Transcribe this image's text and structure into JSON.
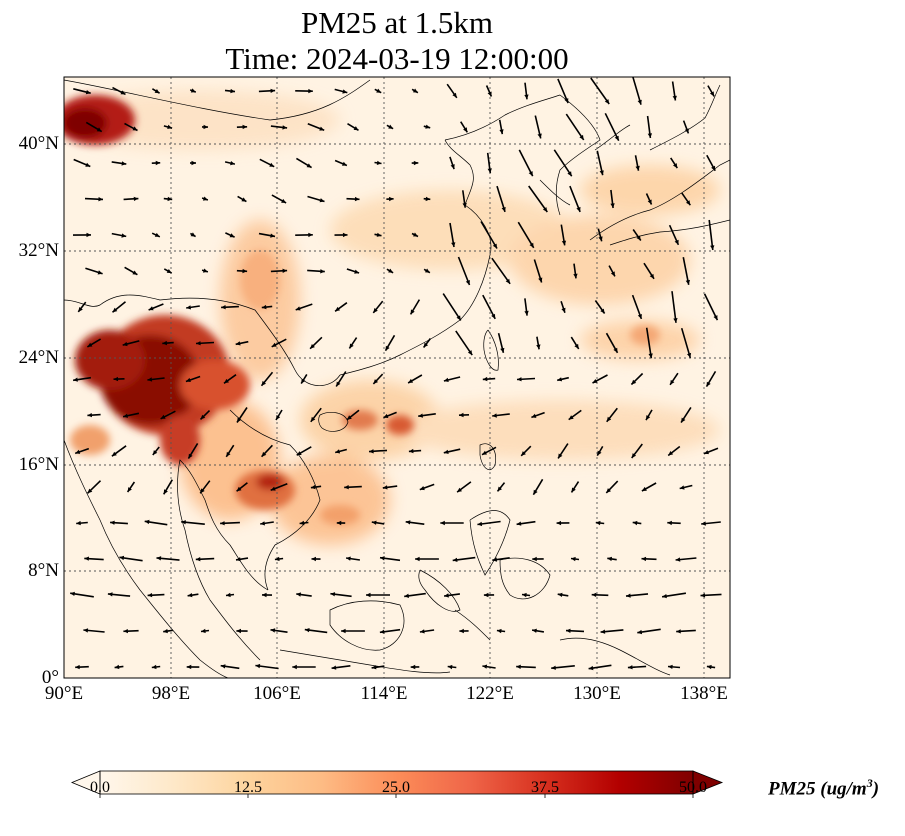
{
  "map": {
    "title_line1": "PM25 at 1.5km",
    "title_line2": "Time: 2024-03-19 12:00:00",
    "lat_labels": [
      "40°N",
      "32°N",
      "24°N",
      "16°N",
      "8°N",
      "0°"
    ],
    "lon_labels": [
      "90°E",
      "98°E",
      "106°E",
      "114°E",
      "122°E",
      "130°E",
      "138°E"
    ],
    "lon_range": [
      90,
      140
    ],
    "lat_range": [
      0,
      45
    ],
    "gridlines": true
  },
  "colorbar": {
    "label_text": "PM25 (ug/m",
    "label_exponent": "3",
    "label_close": ")",
    "ticks": [
      "0.0",
      "12.5",
      "25.0",
      "37.5",
      "50.0"
    ],
    "range": [
      0,
      50
    ],
    "extend": "both",
    "colormap": "OrRd",
    "colors": [
      "#fff7ec",
      "#fee8c8",
      "#fdd49e",
      "#fdbb84",
      "#fc8d59",
      "#ef6548",
      "#d7301f",
      "#b30000",
      "#7f0000"
    ]
  }
}
